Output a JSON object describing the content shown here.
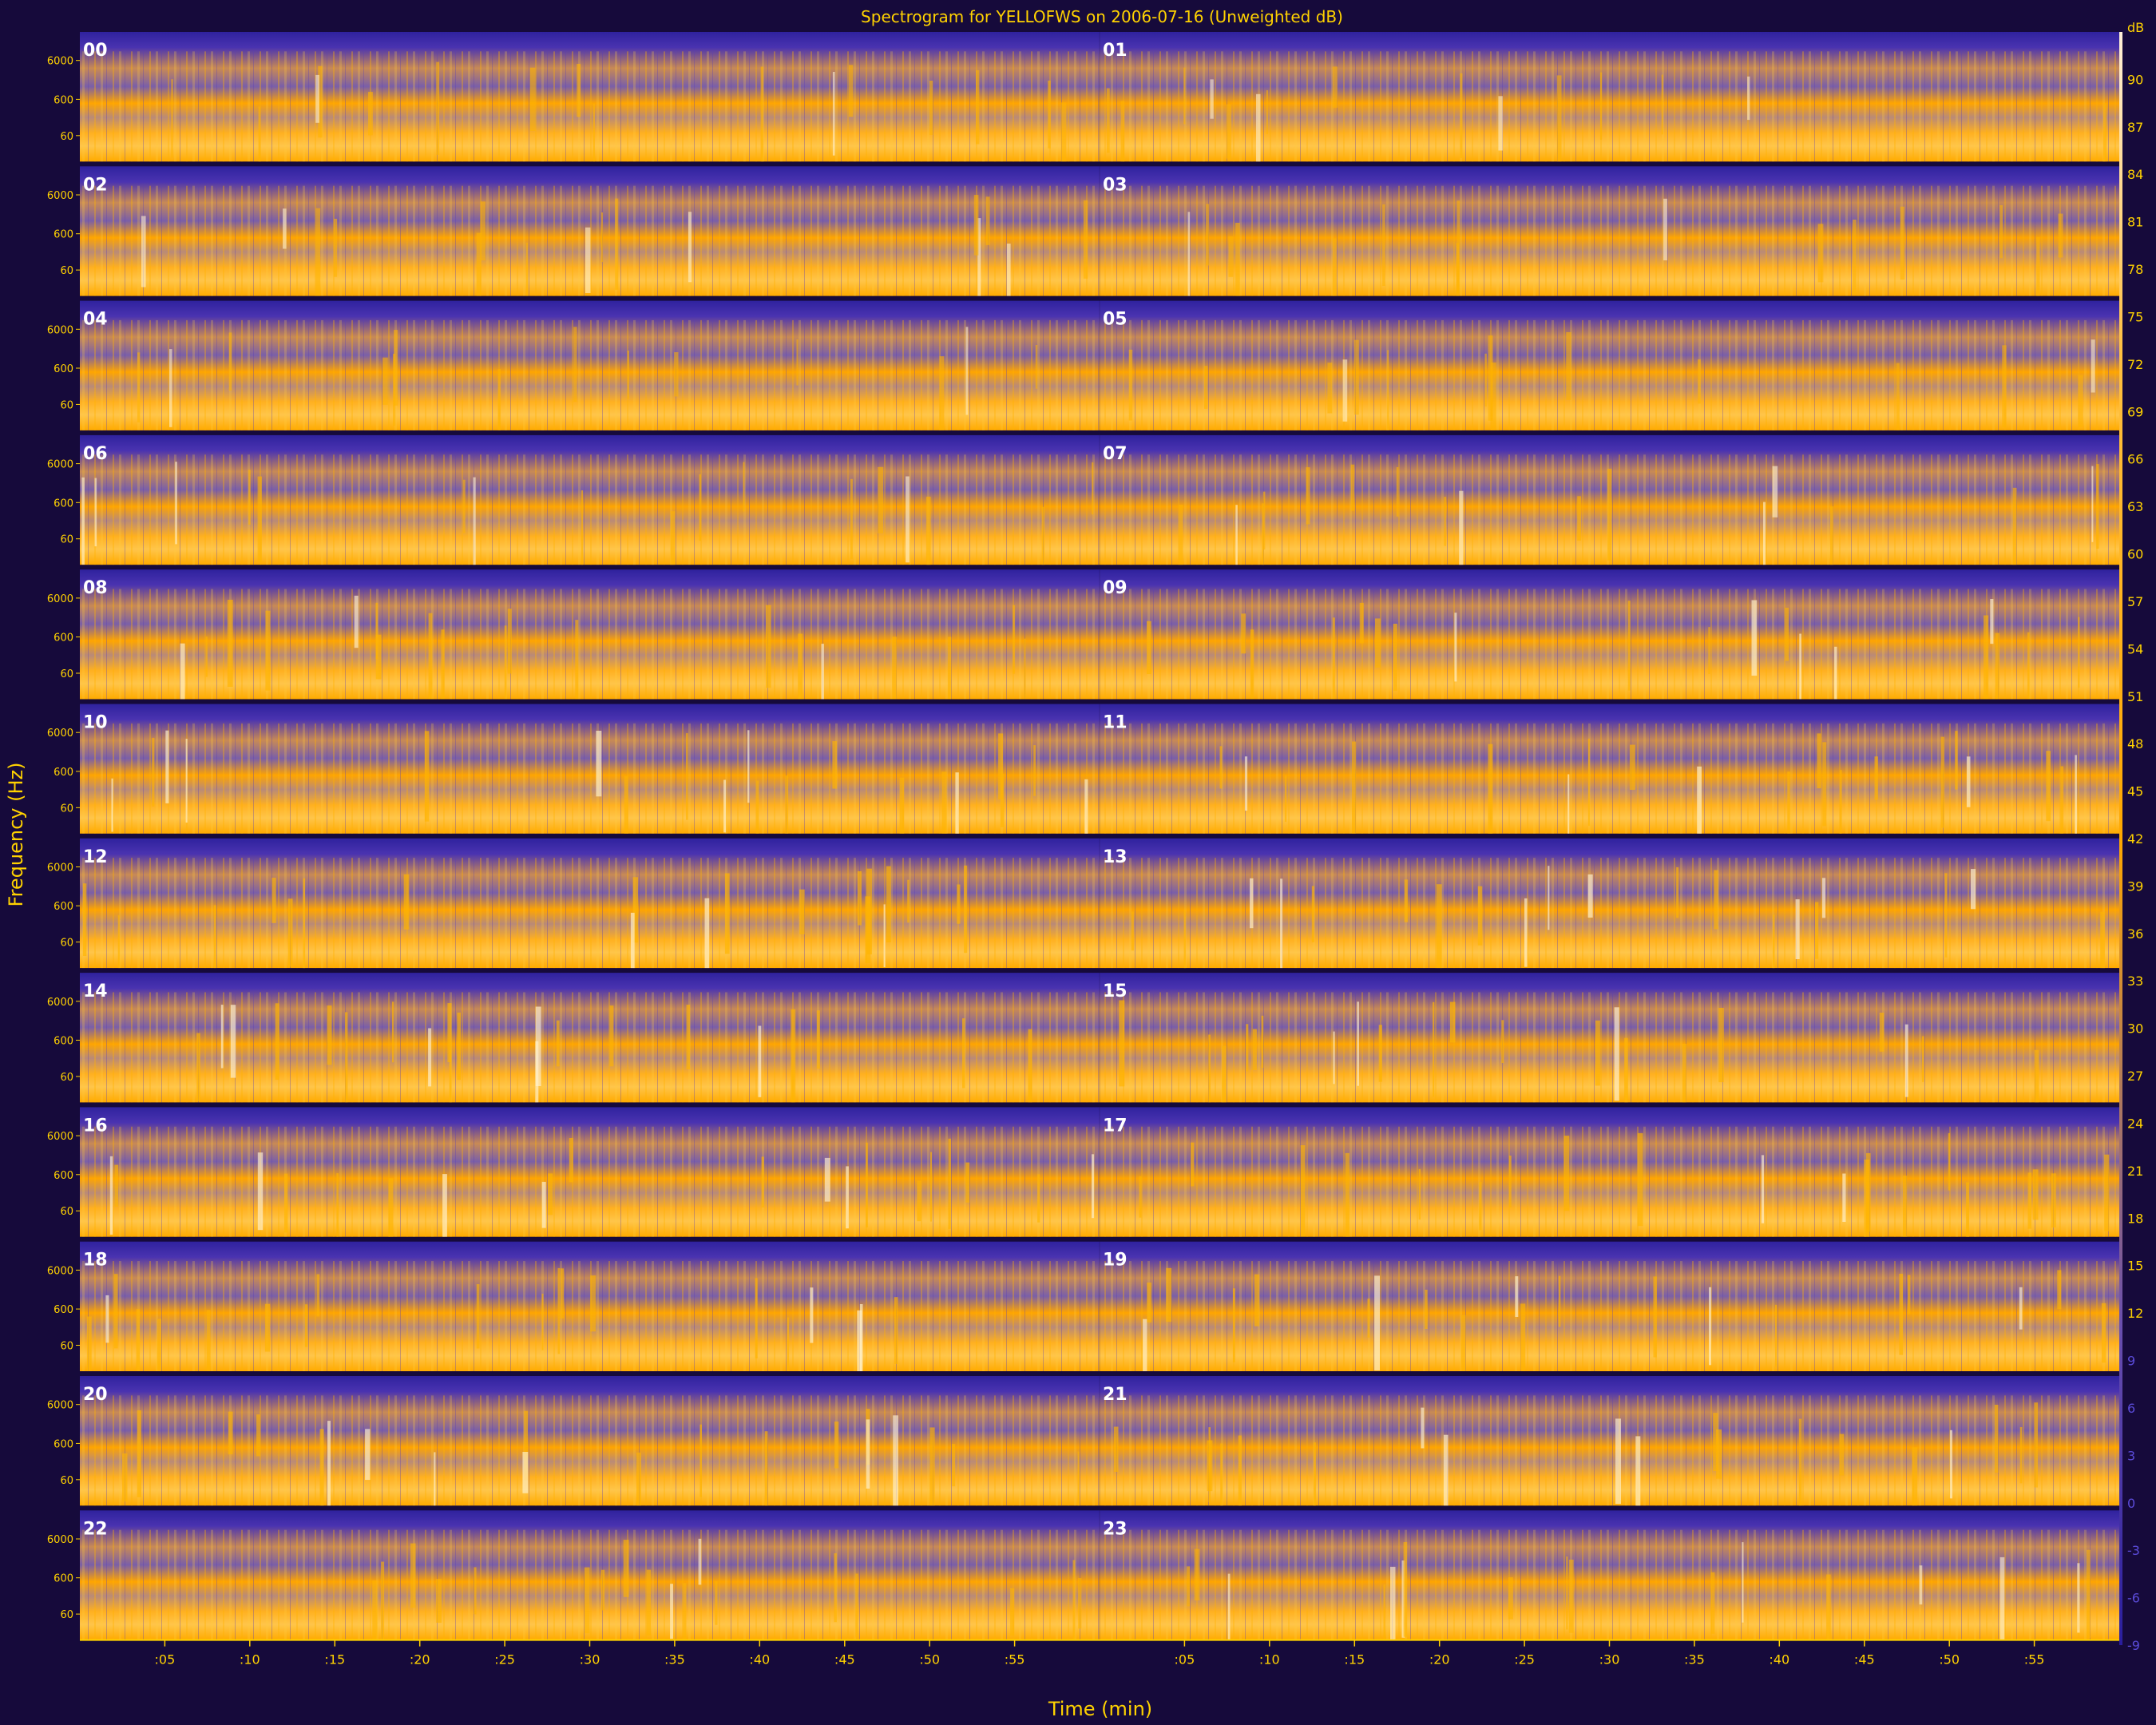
{
  "chart_data": {
    "type": "heatmap",
    "title": "Spectrogram for YELLOFWS on 2006-07-16 (Unweighted dB)",
    "xlabel": "Time (min)",
    "ylabel": "Frequency (Hz)",
    "colorbar_label": "dB",
    "x_ticks": [
      ":05",
      ":10",
      ":15",
      ":20",
      ":25",
      ":30",
      ":35",
      ":40",
      ":45",
      ":50",
      ":55"
    ],
    "y_ticks": [
      "60",
      "600",
      "6000"
    ],
    "hours": [
      "00",
      "01",
      "02",
      "03",
      "04",
      "05",
      "06",
      "07",
      "08",
      "09",
      "10",
      "11",
      "12",
      "13",
      "14",
      "15",
      "16",
      "17",
      "18",
      "19",
      "20",
      "21",
      "22",
      "23"
    ],
    "colorbar_ticks": [
      90,
      87,
      84,
      81,
      78,
      75,
      72,
      69,
      66,
      63,
      60,
      57,
      54,
      51,
      48,
      45,
      42,
      39,
      36,
      33,
      30,
      27,
      24,
      21,
      18,
      15,
      12,
      9,
      6,
      3,
      0,
      -3,
      -6,
      -9
    ],
    "colorbar_range": [
      -9,
      93
    ],
    "colormap": [
      "#2a1e9e",
      "#6a4fae",
      "#c48a60",
      "#ffa800",
      "#ffc040",
      "#fff0d8"
    ],
    "level_by_hour": [
      0.62,
      0.58,
      0.6,
      0.58,
      0.55,
      0.56,
      0.64,
      0.66,
      0.72,
      0.74,
      0.75,
      0.76,
      0.78,
      0.78,
      0.8,
      0.8,
      0.78,
      0.78,
      0.76,
      0.76,
      0.76,
      0.74,
      0.68,
      0.64
    ]
  }
}
